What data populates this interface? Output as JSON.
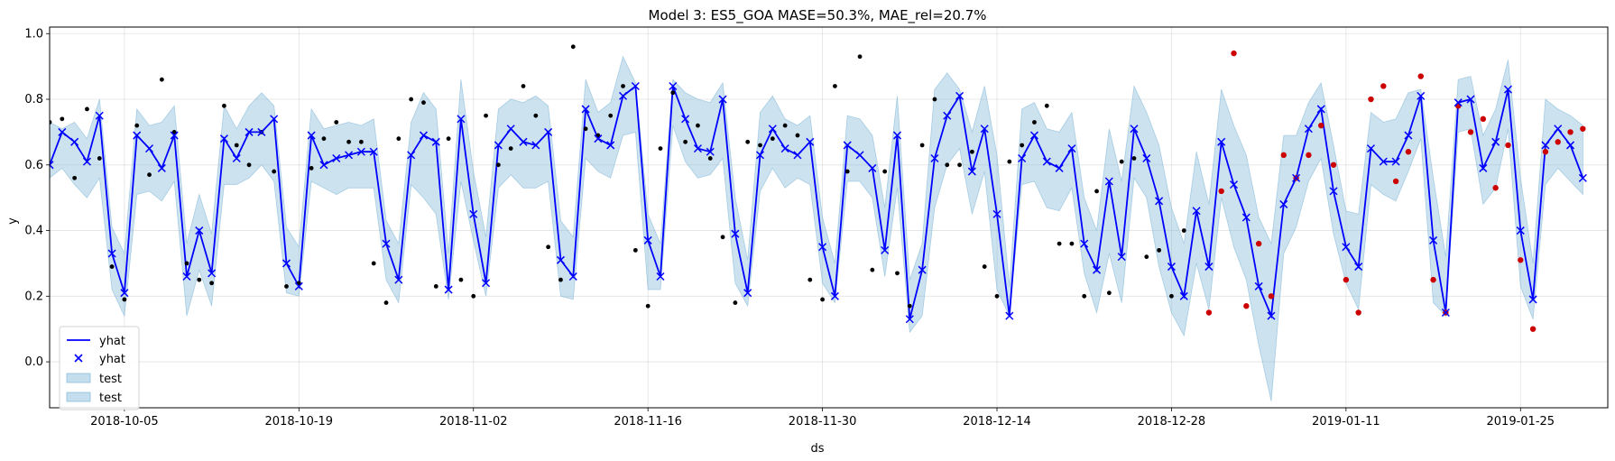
{
  "chart_data": {
    "type": "line",
    "title": "Model 3: ES5_GOA MASE=50.3%, MAE_rel=20.7%",
    "xlabel": "ds",
    "ylabel": "y",
    "xlim": [
      "2018-09-29",
      "2019-02-01"
    ],
    "ylim": [
      -0.14,
      1.02
    ],
    "grid": true,
    "legend_placement": "lower-left",
    "x_ticks": [
      "2018-10-05",
      "2018-10-19",
      "2018-11-02",
      "2018-11-16",
      "2018-11-30",
      "2018-12-14",
      "2018-12-28",
      "2019-01-11",
      "2019-01-25"
    ],
    "y_ticks": [
      "0.0",
      "0.2",
      "0.4",
      "0.6",
      "0.8",
      "1.0"
    ],
    "legend": [
      {
        "label": "yhat",
        "marker": "line",
        "color": "#0000ff"
      },
      {
        "label": "yhat",
        "marker": "x",
        "color": "#0000ff"
      },
      {
        "label": "test",
        "marker": "band",
        "color": "#7fb6d7"
      },
      {
        "label": "test",
        "marker": "band",
        "color": "#7fb6d7"
      }
    ],
    "colors": {
      "forecast": "#0000ff",
      "band": "#7fb6d7",
      "actual": "#000000",
      "test_actual": "#cc0000"
    },
    "start_date": "2018-09-29",
    "yhat": [
      0.6,
      0.7,
      0.67,
      0.61,
      0.75,
      0.33,
      0.21,
      0.69,
      0.65,
      0.59,
      0.69,
      0.26,
      0.4,
      0.27,
      0.68,
      0.62,
      0.7,
      0.7,
      0.74,
      0.3,
      0.23,
      0.69,
      0.6,
      0.62,
      0.63,
      0.64,
      0.64,
      0.36,
      0.25,
      0.63,
      0.69,
      0.67,
      0.22,
      0.74,
      0.45,
      0.24,
      0.66,
      0.71,
      0.67,
      0.66,
      0.7,
      0.31,
      0.26,
      0.77,
      0.68,
      0.66,
      0.81,
      0.84,
      0.37,
      0.26,
      0.84,
      0.74,
      0.65,
      0.64,
      0.8,
      0.39,
      0.21,
      0.63,
      0.71,
      0.65,
      0.63,
      0.67,
      0.35,
      0.2,
      0.66,
      0.63,
      0.59,
      0.34,
      0.69,
      0.13,
      0.28,
      0.62,
      0.75,
      0.81,
      0.58,
      0.71,
      0.45,
      0.14,
      0.62,
      0.69,
      0.61,
      0.59,
      0.65,
      0.36,
      0.28,
      0.55,
      0.32,
      0.71,
      0.62,
      0.49,
      0.29,
      0.2,
      0.46,
      0.29,
      0.67,
      0.54,
      0.44,
      0.23,
      0.14,
      0.48,
      0.56,
      0.71,
      0.77,
      0.52,
      0.35,
      0.29,
      0.65,
      0.61,
      0.61,
      0.69,
      0.81,
      0.37,
      0.15,
      0.79,
      0.8,
      0.59,
      0.67,
      0.83,
      0.4,
      0.19,
      0.66,
      0.71,
      0.66,
      0.56
    ],
    "yhat_lower": [
      0.56,
      0.59,
      0.54,
      0.5,
      0.56,
      0.22,
      0.14,
      0.51,
      0.52,
      0.49,
      0.55,
      0.14,
      0.28,
      0.17,
      0.54,
      0.54,
      0.56,
      0.6,
      0.55,
      0.21,
      0.2,
      0.55,
      0.53,
      0.51,
      0.53,
      0.53,
      0.53,
      0.25,
      0.18,
      0.54,
      0.5,
      0.45,
      0.19,
      0.55,
      0.37,
      0.2,
      0.53,
      0.57,
      0.53,
      0.53,
      0.55,
      0.2,
      0.19,
      0.62,
      0.58,
      0.56,
      0.69,
      0.7,
      0.22,
      0.22,
      0.72,
      0.61,
      0.56,
      0.57,
      0.62,
      0.24,
      0.17,
      0.52,
      0.59,
      0.53,
      0.56,
      0.54,
      0.24,
      0.18,
      0.55,
      0.55,
      0.5,
      0.26,
      0.53,
      0.09,
      0.14,
      0.47,
      0.6,
      0.65,
      0.45,
      0.58,
      0.22,
      0.14,
      0.54,
      0.55,
      0.47,
      0.46,
      0.53,
      0.27,
      0.15,
      0.33,
      0.18,
      0.56,
      0.5,
      0.29,
      0.15,
      0.08,
      0.3,
      0.16,
      0.5,
      0.35,
      0.25,
      0.05,
      -0.12,
      0.33,
      0.41,
      0.55,
      0.62,
      0.39,
      0.24,
      0.16,
      0.54,
      0.51,
      0.49,
      0.58,
      0.68,
      0.18,
      0.14,
      0.7,
      0.71,
      0.48,
      0.53,
      0.71,
      0.23,
      0.13,
      0.54,
      0.59,
      0.55,
      0.51
    ],
    "yhat_upper": [
      0.73,
      0.71,
      0.73,
      0.68,
      0.8,
      0.41,
      0.33,
      0.77,
      0.72,
      0.73,
      0.78,
      0.36,
      0.51,
      0.39,
      0.78,
      0.71,
      0.78,
      0.82,
      0.78,
      0.41,
      0.35,
      0.77,
      0.71,
      0.72,
      0.73,
      0.72,
      0.74,
      0.43,
      0.36,
      0.73,
      0.82,
      0.77,
      0.33,
      0.86,
      0.58,
      0.38,
      0.77,
      0.8,
      0.79,
      0.81,
      0.78,
      0.43,
      0.38,
      0.86,
      0.76,
      0.79,
      0.93,
      0.85,
      0.45,
      0.36,
      0.86,
      0.82,
      0.8,
      0.79,
      0.85,
      0.5,
      0.31,
      0.76,
      0.81,
      0.74,
      0.72,
      0.75,
      0.44,
      0.3,
      0.75,
      0.74,
      0.69,
      0.47,
      0.81,
      0.25,
      0.36,
      0.83,
      0.88,
      0.83,
      0.7,
      0.84,
      0.63,
      0.23,
      0.77,
      0.79,
      0.71,
      0.7,
      0.76,
      0.5,
      0.4,
      0.71,
      0.55,
      0.84,
      0.76,
      0.66,
      0.47,
      0.36,
      0.64,
      0.48,
      0.83,
      0.72,
      0.63,
      0.44,
      0.36,
      0.69,
      0.69,
      0.79,
      0.85,
      0.66,
      0.46,
      0.45,
      0.76,
      0.73,
      0.74,
      0.82,
      0.83,
      0.56,
      0.32,
      0.86,
      0.87,
      0.69,
      0.77,
      0.92,
      0.56,
      0.3,
      0.8,
      0.77,
      0.75,
      0.72
    ],
    "actual": [
      0.73,
      0.74,
      0.56,
      0.77,
      0.62,
      0.29,
      0.19,
      0.72,
      0.57,
      0.86,
      0.7,
      0.3,
      0.25,
      0.24,
      0.78,
      0.66,
      0.6,
      0.7,
      0.58,
      0.23,
      0.24,
      0.59,
      0.68,
      0.73,
      0.67,
      0.67,
      0.3,
      0.18,
      0.68,
      0.8,
      0.79,
      0.23,
      0.68,
      0.25,
      0.2,
      0.75,
      0.6,
      0.65,
      0.84,
      0.75,
      0.35,
      0.25,
      0.96,
      0.71,
      0.69,
      0.75,
      0.84,
      0.34,
      0.17,
      0.65,
      0.82,
      0.67,
      0.72,
      0.62,
      0.38,
      0.18,
      0.67,
      0.66,
      0.68,
      0.72,
      0.69,
      0.25,
      0.19,
      0.84,
      0.58,
      0.93,
      0.28,
      0.58,
      0.27,
      0.17,
      0.66,
      0.8,
      0.6,
      0.6,
      0.64,
      0.29,
      0.2,
      0.61,
      0.66,
      0.73,
      0.78,
      0.36,
      0.36,
      0.2,
      0.52,
      0.21,
      0.61,
      0.62,
      0.32,
      0.34,
      0.2,
      0.4
    ],
    "test_actual": [
      0.15,
      0.52,
      0.94,
      0.17,
      0.36,
      0.2,
      0.63,
      0.56,
      0.63,
      0.72,
      0.6,
      0.25,
      0.15,
      0.8,
      0.84,
      0.55,
      0.64,
      0.87,
      0.25,
      0.15,
      0.78,
      0.7,
      0.74,
      0.53,
      0.66,
      0.31,
      0.1,
      0.64,
      0.67,
      0.7,
      0.71
    ]
  }
}
